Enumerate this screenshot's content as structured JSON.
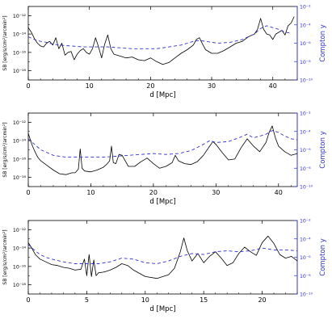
{
  "chart_data": [
    {
      "type": "line",
      "xlabel": "d [Mpc]",
      "ylabel_left": "SB [erg/s/cm²/arcmin²]",
      "ylabel_right": "Compton y",
      "xlim": [
        0,
        44
      ],
      "xticks": [
        0,
        10,
        20,
        30,
        40
      ],
      "ylim_left": [
        1e-19,
        1e-11
      ],
      "ylim_right": [
        1e-10,
        0.01
      ],
      "yticks_left": [
        "10⁻¹²",
        "10⁻¹⁴",
        "10⁻¹⁶",
        "10⁻¹⁸"
      ],
      "yticks_right": [
        "10⁻²",
        "10⁻⁴",
        "10⁻⁶",
        "10⁻⁸",
        "10⁻¹⁰"
      ],
      "series": [
        {
          "axis": "left",
          "style": "solid",
          "color": "#000000",
          "x": [
            0,
            0.5,
            1,
            1.5,
            2,
            2.5,
            3,
            3.5,
            4,
            4.5,
            5,
            5.5,
            6,
            6.5,
            7,
            7.5,
            8,
            8.5,
            9,
            9.5,
            10,
            10.5,
            11,
            11.5,
            12,
            12.5,
            13,
            13.5,
            14,
            15,
            16,
            17,
            18,
            19,
            20,
            21,
            22,
            23,
            24,
            25,
            26,
            27,
            27.5,
            28,
            28.5,
            29,
            30,
            31,
            32,
            33,
            34,
            35,
            36,
            37,
            37.5,
            38,
            38.5,
            39,
            39.5,
            40,
            40.5,
            41,
            41.5,
            42,
            42.5,
            43,
            43.5
          ],
          "y": [
            -13.3,
            -13.8,
            -14.5,
            -15.0,
            -15.3,
            -15.4,
            -15.0,
            -14.8,
            -15.2,
            -14.4,
            -15.6,
            -15.0,
            -16.3,
            -16.0,
            -15.9,
            -16.8,
            -16.2,
            -15.8,
            -15.6,
            -16.0,
            -16.2,
            -15.6,
            -14.4,
            -15.4,
            -16.6,
            -15.1,
            -14.1,
            -15.6,
            -16.2,
            -16.4,
            -16.6,
            -16.5,
            -16.8,
            -16.9,
            -16.6,
            -17.0,
            -17.3,
            -17.1,
            -16.6,
            -16.1,
            -15.7,
            -15.2,
            -14.6,
            -14.4,
            -15.1,
            -15.7,
            -16.1,
            -16.1,
            -15.8,
            -15.4,
            -15.0,
            -14.8,
            -14.3,
            -14.0,
            -13.5,
            -12.3,
            -13.5,
            -14.0,
            -14.1,
            -14.6,
            -14.0,
            -13.8,
            -13.6,
            -14.1,
            -13.1,
            -12.8,
            -12.1
          ]
        },
        {
          "axis": "right",
          "style": "dashed",
          "color": "#3333cc",
          "x": [
            0,
            1,
            2,
            3,
            4,
            5,
            7,
            9,
            11,
            13,
            15,
            17,
            19,
            21,
            23,
            25,
            27,
            28,
            29,
            31,
            33,
            35,
            37,
            38,
            39,
            40,
            41,
            42,
            43
          ],
          "y": [
            -5.3,
            -5.6,
            -5.8,
            -5.9,
            -6.1,
            -6.2,
            -6.3,
            -6.4,
            -6.4,
            -6.4,
            -6.5,
            -6.6,
            -6.6,
            -6.6,
            -6.4,
            -6.2,
            -5.8,
            -5.7,
            -5.8,
            -6.0,
            -5.9,
            -5.6,
            -5.0,
            -4.4,
            -4.1,
            -4.3,
            -4.5,
            -4.8,
            -4.9
          ]
        }
      ]
    },
    {
      "type": "line",
      "xlabel": "d [Mpc]",
      "ylabel_left": "SB [erg/s/cm²/arcmin²]",
      "ylabel_right": "Compton y",
      "xlim": [
        0,
        43
      ],
      "xticks": [
        0,
        10,
        20,
        30,
        40
      ],
      "ylim_left": [
        1e-19,
        1e-11
      ],
      "ylim_right": [
        1e-10,
        0.01
      ],
      "yticks_left": [
        "10⁻¹²",
        "10⁻¹⁴",
        "10⁻¹⁶",
        "10⁻¹⁸"
      ],
      "yticks_right": [
        "10⁻²",
        "10⁻⁴",
        "10⁻⁶",
        "10⁻⁸",
        "10⁻¹⁰"
      ],
      "series": [
        {
          "axis": "left",
          "style": "solid",
          "color": "#000000",
          "x": [
            0,
            0.5,
            1,
            1.5,
            2,
            3,
            4,
            5,
            6,
            7,
            7.5,
            8,
            8.3,
            8.6,
            9,
            10,
            11,
            12,
            12.5,
            13,
            13.3,
            13.6,
            14,
            14.5,
            15,
            16,
            17,
            18,
            19,
            20,
            21,
            22,
            23,
            23.5,
            24,
            25,
            26,
            27,
            28,
            29,
            29.5,
            30,
            31,
            32,
            33,
            34,
            35,
            36,
            37,
            38,
            38.5,
            39,
            39.5,
            40,
            41,
            42,
            43
          ],
          "y": [
            -13.2,
            -14.3,
            -15.1,
            -15.8,
            -16.2,
            -16.7,
            -17.2,
            -17.6,
            -17.7,
            -17.5,
            -17.5,
            -17.1,
            -14.9,
            -17.0,
            -17.3,
            -17.4,
            -17.2,
            -16.9,
            -16.6,
            -16.2,
            -14.6,
            -16.4,
            -16.5,
            -15.5,
            -15.6,
            -16.8,
            -16.8,
            -16.3,
            -15.9,
            -16.5,
            -17.0,
            -16.8,
            -16.4,
            -15.6,
            -16.2,
            -16.5,
            -16.6,
            -16.3,
            -15.6,
            -14.6,
            -14.1,
            -14.4,
            -15.3,
            -16.1,
            -16.0,
            -14.8,
            -13.8,
            -14.6,
            -15.2,
            -14.2,
            -13.1,
            -12.4,
            -13.7,
            -14.6,
            -15.2,
            -15.6,
            -15.4
          ]
        },
        {
          "axis": "right",
          "style": "dashed",
          "color": "#3333cc",
          "x": [
            0,
            1,
            2,
            3,
            4,
            6,
            8,
            10,
            12,
            14,
            16,
            18,
            20,
            22,
            24,
            26,
            28,
            29,
            30,
            32,
            34,
            35,
            36,
            38,
            39,
            40,
            41,
            42,
            43
          ],
          "y": [
            -4.8,
            -5.4,
            -6.0,
            -6.3,
            -6.6,
            -6.8,
            -6.8,
            -6.8,
            -6.8,
            -6.7,
            -6.6,
            -6.5,
            -6.4,
            -6.5,
            -6.4,
            -6.1,
            -5.4,
            -5.0,
            -5.2,
            -5.1,
            -4.6,
            -4.3,
            -4.7,
            -4.3,
            -3.9,
            -4.1,
            -4.5,
            -4.8,
            -4.9
          ]
        }
      ]
    },
    {
      "type": "line",
      "xlabel": "d [Mpc]",
      "ylabel_left": "SB [erg/s/cm²/arcmin²]",
      "ylabel_right": "Compton y",
      "xlim": [
        0,
        23
      ],
      "xticks": [
        0,
        5,
        10,
        15,
        20
      ],
      "ylim_left": [
        1e-19,
        1e-11
      ],
      "ylim_right": [
        1e-10,
        0.01
      ],
      "yticks_left": [
        "10⁻¹²",
        "10⁻¹⁴",
        "10⁻¹⁶",
        "10⁻¹⁸"
      ],
      "yticks_right": [
        "10⁻²",
        "10⁻⁴",
        "10⁻⁶",
        "10⁻⁸",
        "10⁻¹⁰"
      ],
      "series": [
        {
          "axis": "left",
          "style": "solid",
          "color": "#000000",
          "x": [
            0,
            0.3,
            0.6,
            1,
            1.5,
            2,
            2.5,
            3,
            3.5,
            4,
            4.5,
            4.8,
            5,
            5.2,
            5.4,
            5.6,
            5.8,
            6,
            6.5,
            7,
            7.5,
            8,
            8.5,
            9,
            10,
            11,
            12,
            12.5,
            13,
            13.3,
            13.6,
            14,
            14.5,
            15,
            15.5,
            16,
            16.5,
            17,
            17.5,
            18,
            18.5,
            19,
            19.5,
            20,
            20.5,
            21,
            21.5,
            22,
            22.5,
            23
          ],
          "y": [
            -13.4,
            -14.0,
            -14.7,
            -15.2,
            -15.5,
            -15.8,
            -15.9,
            -16.1,
            -16.2,
            -16.4,
            -16.3,
            -15.2,
            -17.0,
            -14.7,
            -17.1,
            -15.3,
            -17.0,
            -16.7,
            -16.6,
            -16.4,
            -16.1,
            -15.7,
            -15.9,
            -16.4,
            -17.1,
            -17.3,
            -16.9,
            -16.2,
            -14.4,
            -12.9,
            -14.3,
            -15.4,
            -14.6,
            -15.6,
            -14.9,
            -14.4,
            -15.1,
            -15.9,
            -15.6,
            -14.6,
            -13.9,
            -14.4,
            -14.8,
            -13.4,
            -12.7,
            -13.5,
            -14.7,
            -15.1,
            -14.9,
            -15.4
          ]
        },
        {
          "axis": "right",
          "style": "dashed",
          "color": "#3333cc",
          "x": [
            0,
            0.5,
            1,
            1.5,
            2,
            3,
            4,
            5,
            6,
            7,
            8,
            9,
            10,
            11,
            12,
            13,
            14,
            15,
            16,
            17,
            18,
            19,
            20,
            21,
            22,
            23
          ],
          "y": [
            -4.6,
            -5.2,
            -5.7,
            -6.0,
            -6.2,
            -6.5,
            -6.7,
            -6.7,
            -6.7,
            -6.5,
            -6.1,
            -6.2,
            -6.6,
            -6.7,
            -6.4,
            -5.9,
            -5.6,
            -5.7,
            -5.4,
            -5.3,
            -5.4,
            -5.3,
            -5.0,
            -5.2,
            -5.2,
            -5.3
          ]
        }
      ]
    }
  ]
}
